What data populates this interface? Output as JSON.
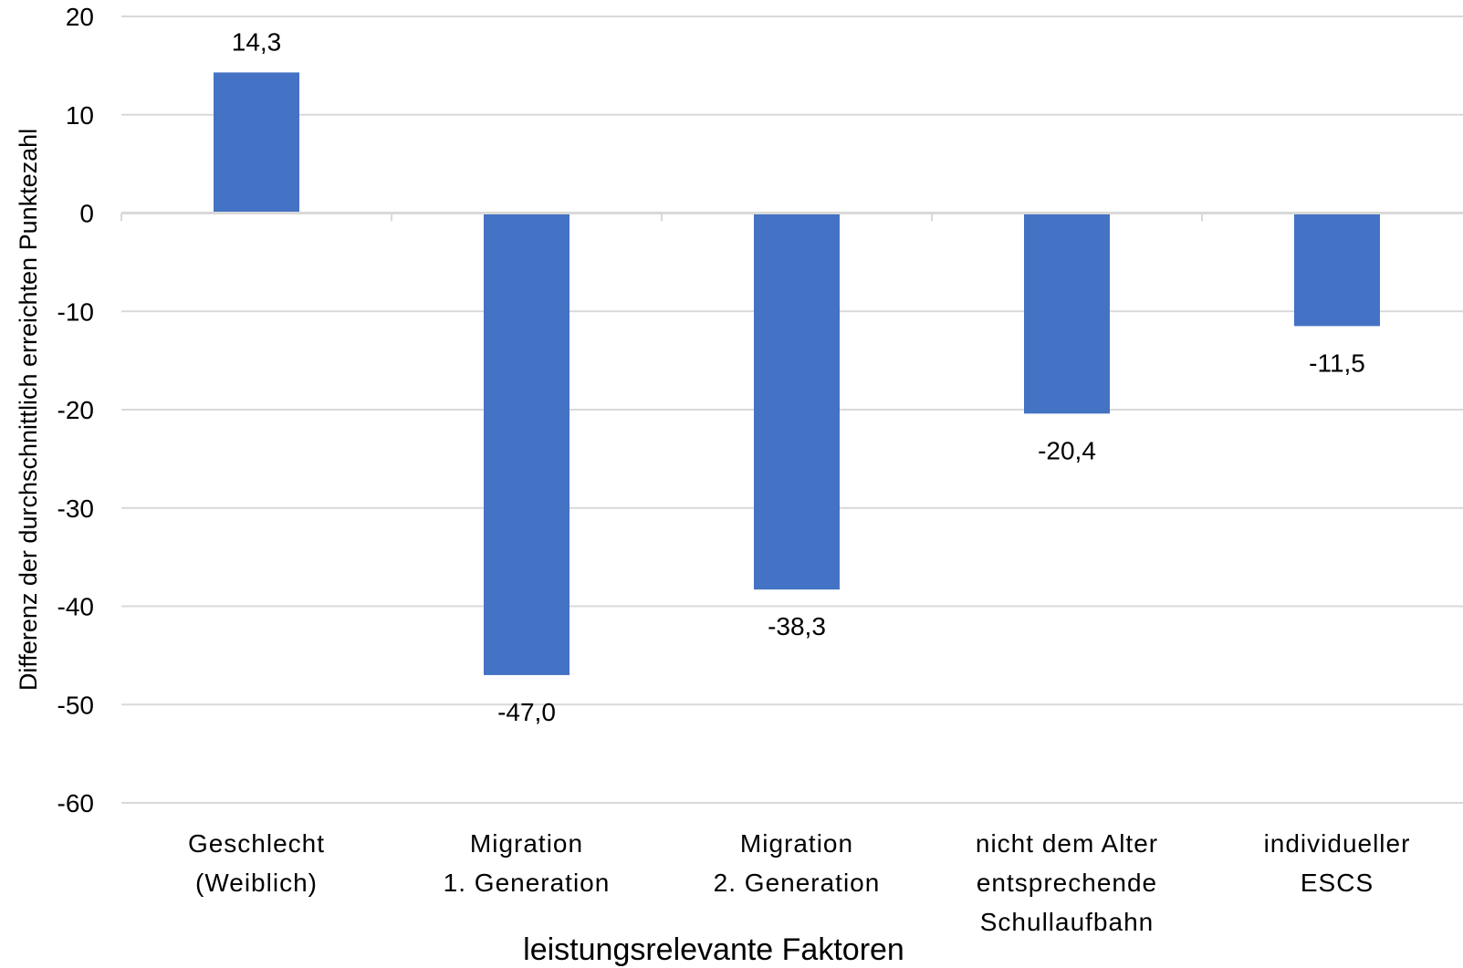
{
  "chart_data": {
    "type": "bar",
    "title": "",
    "xlabel": "leistungsrelevante Faktoren",
    "ylabel": "Differenz der durchschnittlich erreichten Punktezahl",
    "ylim": [
      -60,
      20
    ],
    "yticks": [
      20,
      10,
      0,
      -10,
      -20,
      -30,
      -40,
      -50,
      -60
    ],
    "ytick_labels": [
      "20",
      "10",
      "0",
      "-10",
      "-20",
      "-30",
      "-40",
      "-50",
      "-60"
    ],
    "categories": [
      [
        "Geschlecht",
        "(Weiblich)"
      ],
      [
        "Migration",
        "1. Generation"
      ],
      [
        "Migration",
        "2. Generation"
      ],
      [
        "nicht dem Alter",
        "entsprechende",
        "Schullaufbahn"
      ],
      [
        "individueller",
        "ESCS"
      ]
    ],
    "values": [
      14.3,
      -47.0,
      -38.3,
      -20.4,
      -11.5
    ],
    "value_labels": [
      "14,3",
      "-47,0",
      "-38,3",
      "-20,4",
      "-11,5"
    ],
    "grid": true,
    "legend": "none",
    "colors": {
      "bar": "#4472C4",
      "grid": "#D9D9D9",
      "axis": "#D9D9D9",
      "text": "#000000"
    }
  }
}
